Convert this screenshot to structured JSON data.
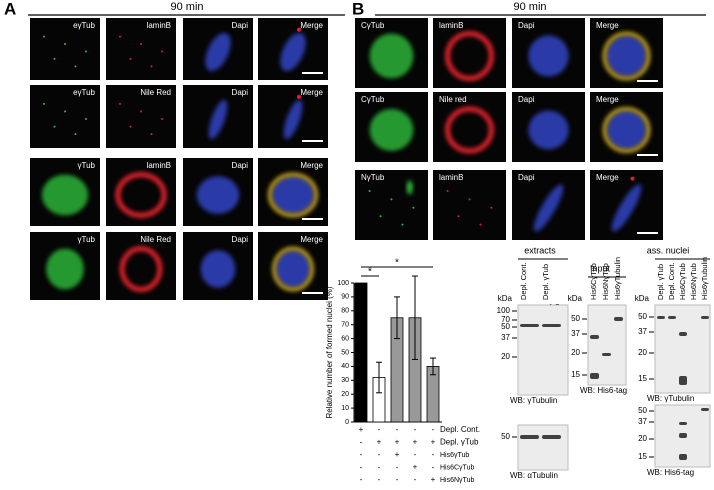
{
  "panel_a": {
    "label": "A",
    "time": "90 min",
    "rows": [
      [
        "eγTub",
        "laminB",
        "Dapi",
        "Merge"
      ],
      [
        "eγTub",
        "Nile Red",
        "Dapi",
        "Merge"
      ],
      [
        "γTub",
        "laminB",
        "Dapi",
        "Merge"
      ],
      [
        "γTub",
        "Nile Red",
        "Dapi",
        "Merge"
      ]
    ]
  },
  "panel_b": {
    "label": "B",
    "time": "90 min",
    "rows": [
      [
        "CγTub",
        "laminB",
        "Dapi",
        "Merge"
      ],
      [
        "CγTub",
        "Nile red",
        "Dapi",
        "Merge"
      ],
      [
        "NγTub",
        "laminB",
        "Dapi",
        "Merge"
      ]
    ]
  },
  "chart_data": {
    "type": "bar",
    "ylabel": "Relative number of formed nuclei (%)",
    "values": [
      100,
      32,
      75,
      75,
      40
    ],
    "errors": [
      null,
      11,
      15,
      30,
      6
    ],
    "colors": [
      "#000000",
      "#ffffff",
      "#999999",
      "#999999",
      "#999999"
    ],
    "ylim": [
      0,
      100
    ],
    "yticks": [
      0,
      10,
      20,
      30,
      40,
      50,
      60,
      70,
      80,
      90,
      100
    ],
    "significance": [
      "*",
      "*"
    ],
    "conditions": {
      "names": [
        "Depl. Cont.",
        "Depl. γTub",
        "His6γTub",
        "His6CγTub",
        "His6NγTub"
      ],
      "signs": [
        [
          "+",
          "-",
          "-",
          "-",
          "-"
        ],
        [
          "-",
          "+",
          "+",
          "+",
          "+"
        ],
        [
          "-",
          "-",
          "+",
          "-",
          "-"
        ],
        [
          "-",
          "-",
          "-",
          "+",
          "-"
        ],
        [
          "-",
          "-",
          "-",
          "-",
          "+"
        ]
      ]
    }
  },
  "blots": {
    "extracts": {
      "title": "extracts",
      "lanes": [
        "Depl. Cont.",
        "Depl. γTub"
      ],
      "dilution": "0.5",
      "unit": "kDa",
      "markers": [
        100,
        70,
        50,
        37,
        20
      ],
      "wb": "WB: γTubulin",
      "markers2": [
        50
      ],
      "wb2": "WB: αTubulin"
    },
    "input": {
      "title": "Input",
      "lanes": [
        "His6CγTub",
        "His6NγTub",
        "His6γTubulin"
      ],
      "unit": "kDa",
      "markers": [
        50,
        37,
        20,
        15
      ],
      "wb": "WB: His6-tag"
    },
    "nuclei": {
      "title": "ass. nuclei",
      "lanes": [
        "Depl. γTub",
        "Depl. Cont.",
        "His6CγTub",
        "His6NγTub",
        "His6γTubulin"
      ],
      "unit": "kDa",
      "markers": [
        50,
        37,
        20,
        15
      ],
      "wb": "WB: γTubulin",
      "markers2": [
        50,
        37,
        20,
        15
      ],
      "wb2": "WB: His6-tag"
    }
  }
}
